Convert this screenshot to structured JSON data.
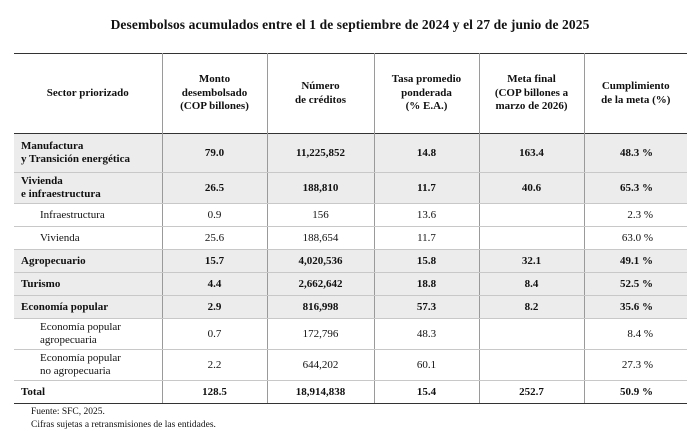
{
  "title": "Desembolsos acumulados entre el 1 de septiembre de 2024 y el 27 de junio de 2025",
  "headers": {
    "sector": "Sector priorizado",
    "monto": "Monto\ndesembolsado\n(COP billones)",
    "numero": "Número\nde créditos",
    "tasa": "Tasa promedio\nponderada\n(% E.A.)",
    "meta": "Meta final\n(COP billones a\nmarzo de 2026)",
    "cumplimiento": "Cumplimiento\nde la meta (%)"
  },
  "rows": [
    {
      "sector": "Manufactura\ny Transición energética",
      "monto": "79.0",
      "numero": "11,225,852",
      "tasa": "14.8",
      "meta": "163.4",
      "cumplimiento": "48.3 %"
    },
    {
      "sector": "Vivienda\ne infraestructura",
      "monto": "26.5",
      "numero": "188,810",
      "tasa": "11.7",
      "meta": "40.6",
      "cumplimiento": "65.3 %"
    },
    {
      "sector": "Infraestructura",
      "monto": "0.9",
      "numero": "156",
      "tasa": "13.6",
      "meta": "",
      "cumplimiento": "2.3 %"
    },
    {
      "sector": "Vivienda",
      "monto": "25.6",
      "numero": "188,654",
      "tasa": "11.7",
      "meta": "",
      "cumplimiento": "63.0 %"
    },
    {
      "sector": "Agropecuario",
      "monto": "15.7",
      "numero": "4,020,536",
      "tasa": "15.8",
      "meta": "32.1",
      "cumplimiento": "49.1 %"
    },
    {
      "sector": "Turismo",
      "monto": "4.4",
      "numero": "2,662,642",
      "tasa": "18.8",
      "meta": "8.4",
      "cumplimiento": "52.5 %"
    },
    {
      "sector": "Economía popular",
      "monto": "2.9",
      "numero": "816,998",
      "tasa": "57.3",
      "meta": "8.2",
      "cumplimiento": "35.6 %"
    },
    {
      "sector": "Economía popular\nagropecuaria",
      "monto": "0.7",
      "numero": "172,796",
      "tasa": "48.3",
      "meta": "",
      "cumplimiento": "8.4 %"
    },
    {
      "sector": "Economía popular\nno agropecuaria",
      "monto": "2.2",
      "numero": "644,202",
      "tasa": "60.1",
      "meta": "",
      "cumplimiento": "27.3 %"
    },
    {
      "sector": "Total",
      "monto": "128.5",
      "numero": "18,914,838",
      "tasa": "15.4",
      "meta": "252.7",
      "cumplimiento": "50.9 %"
    }
  ],
  "notes": {
    "source": "Fuente: SFC, 2025.",
    "disclaimer": "Cifras sujetas a retransmisiones de las entidades."
  }
}
